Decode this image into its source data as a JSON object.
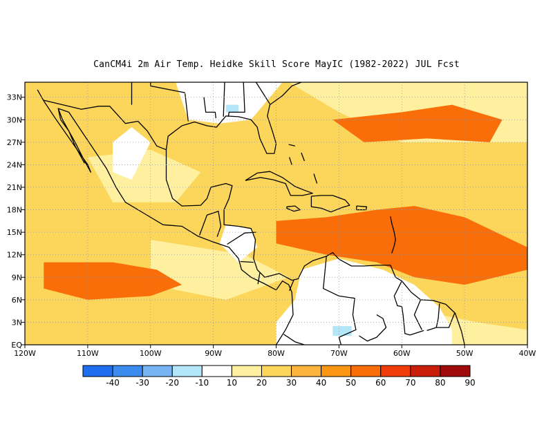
{
  "title": "CanCM4i  2m Air Temp. Heidke Skill Score MayIC (1982-2022) JUL Fcst",
  "map": {
    "lon_range": [
      -120,
      -40
    ],
    "lat_range": [
      0,
      35
    ],
    "x_tick_labels": [
      "120W",
      "110W",
      "100W",
      "90W",
      "80W",
      "70W",
      "60W",
      "50W",
      "40W"
    ],
    "y_tick_labels": [
      "EQ",
      "3N",
      "6N",
      "9N",
      "12N",
      "15N",
      "18N",
      "21N",
      "24N",
      "27N",
      "30N",
      "33N"
    ],
    "grid": true,
    "grid_style": "dotted"
  },
  "colorbar": {
    "labels": [
      "-40",
      "-30",
      "-20",
      "-10",
      "10",
      "20",
      "30",
      "40",
      "50",
      "60",
      "70",
      "80",
      "90"
    ],
    "colors": [
      "#1e6ef0",
      "#3c8cf0",
      "#78b4f5",
      "#b4e6fa",
      "#ffffff",
      "#fff0a0",
      "#fcd65a",
      "#fcb43c",
      "#fa9614",
      "#fa6e0a",
      "#f03c0a",
      "#c81e0a",
      "#a00a0a"
    ]
  },
  "regions": [
    {
      "name": "fill-general",
      "color": "#fcd65a"
    },
    {
      "name": "warm-caribbean",
      "color": "#fa6e0a"
    },
    {
      "name": "warm-east-pacific",
      "color": "#fa6e0a"
    },
    {
      "name": "light-subtropics",
      "color": "#fff0a0"
    },
    {
      "name": "white-land-sa",
      "color": "#ffffff"
    },
    {
      "name": "white-land-na",
      "color": "#ffffff"
    },
    {
      "name": "negative-patches",
      "color": "#b4e6fa"
    }
  ]
}
